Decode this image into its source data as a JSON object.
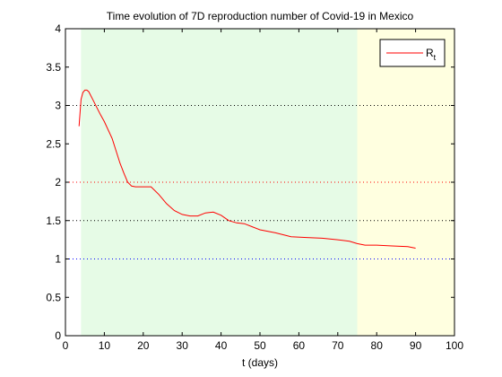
{
  "chart_data": {
    "type": "line",
    "title": "Time evolution of 7D reproduction number of Covid-19 in Mexico",
    "xlabel": "t (days)",
    "ylabel": "",
    "xlim": [
      0,
      100
    ],
    "ylim": [
      0,
      4
    ],
    "xticks": [
      "0",
      "10",
      "20",
      "30",
      "40",
      "50",
      "60",
      "70",
      "80",
      "90",
      "100"
    ],
    "yticks": [
      "0",
      "0.5",
      "1",
      "1.5",
      "2",
      "2.5",
      "3",
      "3.5",
      "4"
    ],
    "grid": false,
    "legend_position": "top-right",
    "legend": {
      "main": "R",
      "sub": "t"
    },
    "background_bands": [
      {
        "x_start": 4,
        "x_end": 75,
        "color": "#e6fbe6"
      },
      {
        "x_start": 75,
        "x_end": 100,
        "color": "#ffffe0"
      }
    ],
    "reference_lines": [
      {
        "y": 3.0,
        "color": "#000000",
        "style": "dotted"
      },
      {
        "y": 2.0,
        "color": "#ff0000",
        "style": "dotted"
      },
      {
        "y": 1.5,
        "color": "#000000",
        "style": "dotted"
      },
      {
        "y": 1.0,
        "color": "#0000ff",
        "style": "dotted"
      }
    ],
    "series": [
      {
        "name": "Rt",
        "color": "#ff0000",
        "x": [
          3.5,
          4.0,
          4.5,
          5.0,
          5.5,
          6.0,
          7.0,
          8.0,
          9.0,
          10.0,
          12.0,
          14.0,
          15.0,
          16.0,
          17.0,
          18.0,
          20.0,
          22.0,
          24.0,
          26.0,
          28.0,
          30.0,
          32.0,
          34.0,
          36.0,
          38.0,
          40.0,
          42.0,
          44.0,
          46.0,
          48.0,
          50.0,
          54.0,
          58.0,
          62.0,
          66.0,
          70.0,
          73.0,
          75.0,
          77.0,
          80.0,
          84.0,
          88.0,
          90.0
        ],
        "y": [
          2.73,
          3.08,
          3.17,
          3.2,
          3.2,
          3.18,
          3.08,
          2.98,
          2.88,
          2.79,
          2.57,
          2.25,
          2.12,
          2.0,
          1.95,
          1.94,
          1.94,
          1.94,
          1.84,
          1.72,
          1.63,
          1.58,
          1.56,
          1.56,
          1.6,
          1.61,
          1.57,
          1.5,
          1.47,
          1.46,
          1.42,
          1.38,
          1.34,
          1.29,
          1.28,
          1.27,
          1.25,
          1.23,
          1.2,
          1.18,
          1.18,
          1.17,
          1.16,
          1.14
        ]
      }
    ]
  }
}
